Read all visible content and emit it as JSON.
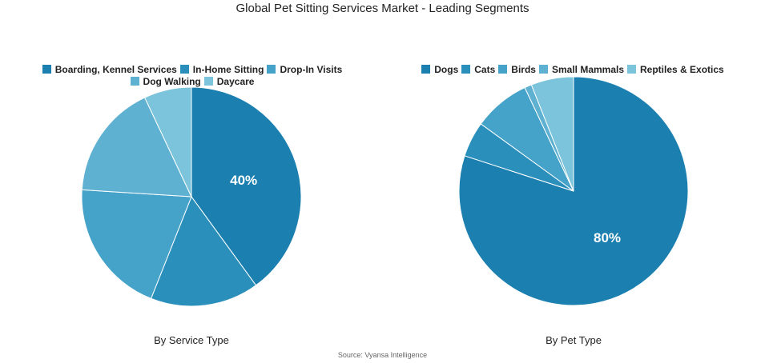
{
  "title": "Global Pet Sitting Services Market - Leading Segments",
  "source": "Source: Vyansa Intelligence",
  "chart_data": [
    {
      "type": "pie",
      "subtitle": "By Service Type",
      "categories": [
        "Boarding, Kennel Services",
        "In-Home Sitting",
        "Drop-In Visits",
        "Dog Walking",
        "Daycare"
      ],
      "values": [
        40,
        16,
        20,
        17,
        7
      ],
      "labels": [
        "40%",
        "",
        "",
        "",
        ""
      ],
      "colors": [
        "#1b7fb0",
        "#2a8fbb",
        "#45a2c8",
        "#5fb1d2",
        "#7bc4dc"
      ],
      "legend": "top"
    },
    {
      "type": "pie",
      "subtitle": "By Pet Type",
      "categories": [
        "Dogs",
        "Cats",
        "Birds",
        "Small Mammals",
        "Reptiles & Exotics"
      ],
      "values": [
        80,
        5,
        8,
        1,
        6
      ],
      "labels": [
        "80%",
        "",
        "",
        "",
        ""
      ],
      "colors": [
        "#1b7fb0",
        "#2a8fbb",
        "#45a2c8",
        "#5fb1d2",
        "#7bc4dc"
      ],
      "legend": "top"
    }
  ]
}
